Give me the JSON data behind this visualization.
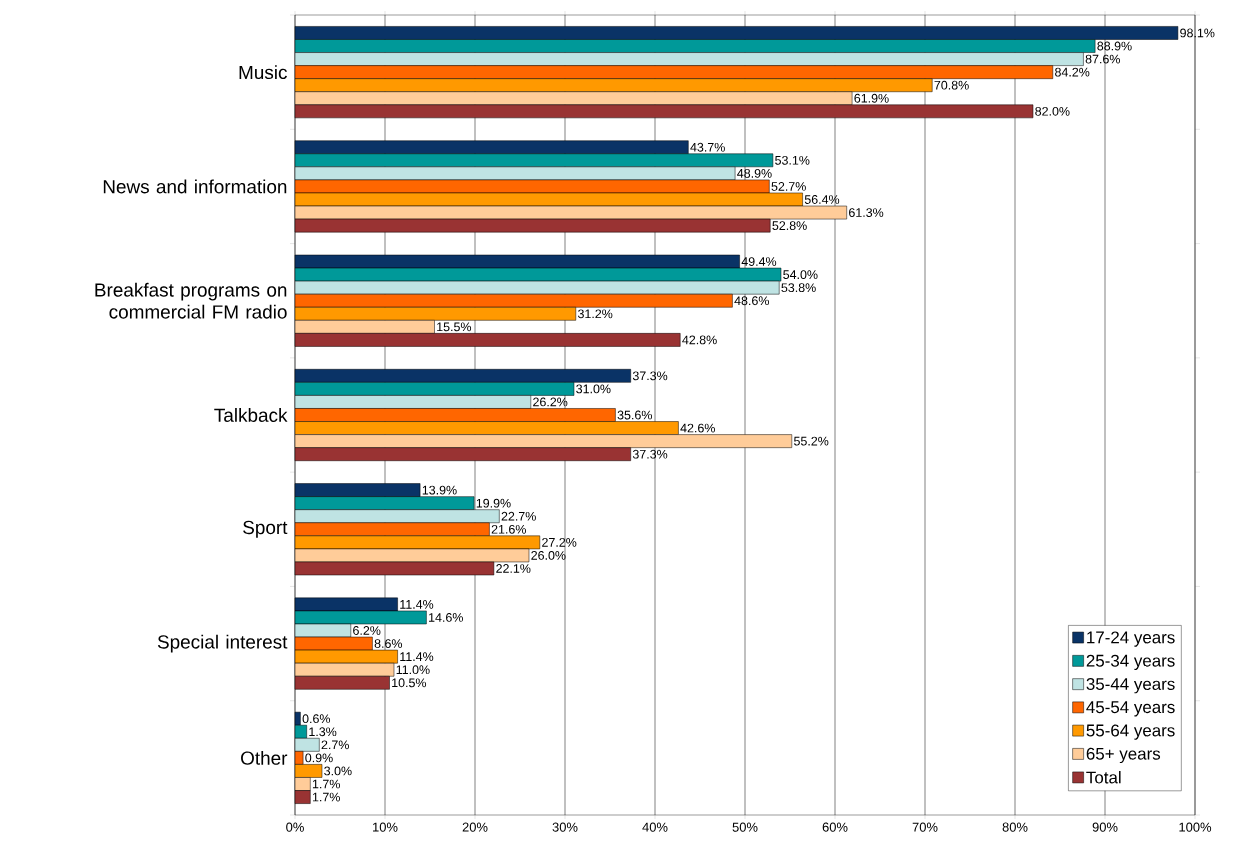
{
  "chart_data": {
    "type": "bar",
    "orientation": "horizontal",
    "categories": [
      "Music",
      "News and information",
      "Breakfast programs on commercial FM radio",
      "Talkback",
      "Sport",
      "Special interest",
      "Other"
    ],
    "series": [
      {
        "name": "17-24 years",
        "color": "#0a3366",
        "values": [
          98.1,
          43.7,
          49.4,
          37.3,
          13.9,
          11.4,
          0.6
        ],
        "value_labels": [
          "98.1%",
          "43.7%",
          "49.4%",
          "37.3%",
          "13.9%",
          "11.4%",
          "0.6%"
        ]
      },
      {
        "name": "25-34 years",
        "color": "#009999",
        "values": [
          88.9,
          53.1,
          54.0,
          31.0,
          19.9,
          14.6,
          1.3
        ],
        "value_labels": [
          "88.9%",
          "53.1%",
          "54.0%",
          "31.0%",
          "19.9%",
          "14.6%",
          "1.3%"
        ]
      },
      {
        "name": "35-44 years",
        "color": "#bfe3e3",
        "values": [
          87.6,
          48.9,
          53.8,
          26.2,
          22.7,
          6.2,
          2.7
        ],
        "value_labels": [
          "87.6%",
          "48.9%",
          "53.8%",
          "26.2%",
          "22.7%",
          "6.2%",
          "2.7%"
        ]
      },
      {
        "name": "45-54 years",
        "color": "#ff6600",
        "values": [
          84.2,
          52.7,
          48.6,
          35.6,
          21.6,
          8.6,
          0.9
        ],
        "value_labels": [
          "84.2%",
          "52.7%",
          "48.6%",
          "35.6%",
          "21.6%",
          "8.6%",
          "0.9%"
        ]
      },
      {
        "name": "55-64 years",
        "color": "#ff9900",
        "values": [
          70.8,
          56.4,
          31.2,
          42.6,
          27.2,
          11.4,
          3.0
        ],
        "value_labels": [
          "70.8%",
          "56.4%",
          "31.2%",
          "42.6%",
          "27.2%",
          "11.4%",
          "3.0%"
        ]
      },
      {
        "name": "65+ years",
        "color": "#ffcc99",
        "values": [
          61.9,
          61.3,
          15.5,
          55.2,
          26.0,
          11.0,
          1.7
        ],
        "value_labels": [
          "61.9%",
          "61.3%",
          "15.5%",
          "55.2%",
          "26.0%",
          "11.0%",
          "1.7%"
        ]
      },
      {
        "name": "Total",
        "color": "#993333",
        "values": [
          82.0,
          52.8,
          42.8,
          37.3,
          22.1,
          10.5,
          1.7
        ],
        "value_labels": [
          "82.0%",
          "52.8%",
          "42.8%",
          "37.3%",
          "22.1%",
          "10.5%",
          "1.7%"
        ]
      }
    ],
    "xlim": [
      0,
      100
    ],
    "xticks": [
      {
        "value": 0,
        "label": "0%"
      },
      {
        "value": 10,
        "label": "10%"
      },
      {
        "value": 20,
        "label": "20%"
      },
      {
        "value": 30,
        "label": "30%"
      },
      {
        "value": 40,
        "label": "40%"
      },
      {
        "value": 50,
        "label": "50%"
      },
      {
        "value": 60,
        "label": "60%"
      },
      {
        "value": 70,
        "label": "70%"
      },
      {
        "value": 80,
        "label": "80%"
      },
      {
        "value": 90,
        "label": "90%"
      },
      {
        "value": 100,
        "label": "100%"
      }
    ],
    "grid": "x",
    "legend": "bottom right"
  }
}
